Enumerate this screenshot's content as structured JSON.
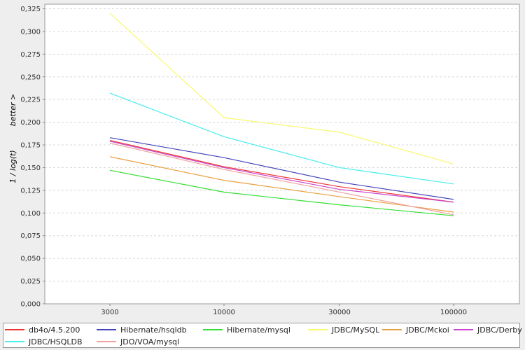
{
  "chart_data": {
    "type": "line",
    "title": "",
    "xlabel": "",
    "ylabel": "1  /  log(t)",
    "ylabel_secondary": "better >",
    "categories": [
      "3000",
      "10000",
      "30000",
      "100000"
    ],
    "y_ticks": [
      "0,000",
      "0,025",
      "0,050",
      "0,075",
      "0,100",
      "0,125",
      "0,150",
      "0,175",
      "0,200",
      "0,225",
      "0,250",
      "0,275",
      "0,300",
      "0,325"
    ],
    "ylim": [
      0,
      0.33
    ],
    "grid": true,
    "legend_position": "bottom",
    "series": [
      {
        "name": "db4o/4.5.200",
        "color": "#ee3333",
        "values": [
          0.18,
          0.151,
          0.129,
          0.112
        ]
      },
      {
        "name": "Hibernate/hsqldb",
        "color": "#4444bb",
        "values": [
          0.183,
          0.161,
          0.134,
          0.115
        ]
      },
      {
        "name": "Hibernate/mysql",
        "color": "#33dd33",
        "values": [
          0.147,
          0.123,
          0.109,
          0.097
        ]
      },
      {
        "name": "JDBC/MySQL",
        "color": "#f8f870",
        "values": [
          0.32,
          0.205,
          0.189,
          0.154
        ]
      },
      {
        "name": "JDBC/Mckoi",
        "color": "#e8a040",
        "values": [
          0.162,
          0.136,
          0.118,
          0.101
        ]
      },
      {
        "name": "JDBC/Derby",
        "color": "#cc44cc",
        "values": [
          0.179,
          0.15,
          0.126,
          0.112
        ]
      },
      {
        "name": "JDBC/HSQLDB",
        "color": "#44eeee",
        "values": [
          0.232,
          0.184,
          0.15,
          0.132
        ]
      },
      {
        "name": "JDO/VOA/mysql",
        "color": "#f0a0a0",
        "values": [
          0.177,
          0.148,
          0.123,
          0.098
        ]
      }
    ]
  }
}
